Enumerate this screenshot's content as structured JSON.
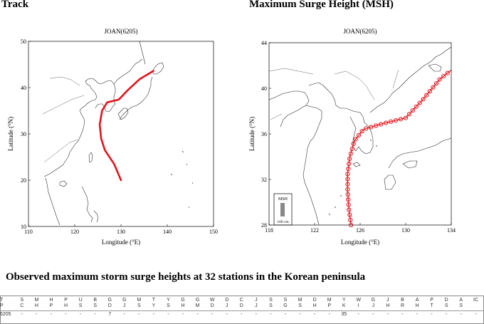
{
  "headings": {
    "track": "Track",
    "msh": "Maximum Surge Height (MSH)",
    "observed": "Observed maximum storm surge heights at 32 stations in the Korean peninsula"
  },
  "left_map": {
    "title": "JOAN(6205)",
    "xlabel": "Longitude (°E)",
    "ylabel": "Latitude (°N)",
    "xlim": [
      110,
      150
    ],
    "ylim": [
      10,
      50
    ],
    "xticks": [
      "110",
      "120",
      "130",
      "140",
      "150"
    ],
    "yticks": [
      "10",
      "20",
      "30",
      "40",
      "50"
    ],
    "track_color": "#e0141b",
    "track": [
      [
        130,
        20
      ],
      [
        128.5,
        23.5
      ],
      [
        126.5,
        26.5
      ],
      [
        125.7,
        29
      ],
      [
        125.4,
        32
      ],
      [
        125.9,
        35
      ],
      [
        127,
        36.8
      ],
      [
        129.5,
        37.4
      ],
      [
        131.5,
        39.5
      ],
      [
        134,
        41.8
      ],
      [
        137,
        43.6
      ]
    ]
  },
  "right_map": {
    "title": "JOAN(6205)",
    "xlabel": "Longitude (°E)",
    "ylabel": "Latitude (°N)",
    "xlim": [
      118,
      134
    ],
    "ylim": [
      28,
      44
    ],
    "xticks": [
      "118",
      "122",
      "126",
      "130",
      "134"
    ],
    "yticks": [
      "28",
      "32",
      "36",
      "40",
      "44"
    ],
    "legend_title": "MSH",
    "legend_scale": "100 cm",
    "track_color": "#e0141b",
    "track": [
      [
        125.2,
        28
      ],
      [
        125,
        29.5
      ],
      [
        124.9,
        31
      ],
      [
        124.9,
        32.5
      ],
      [
        125.1,
        34
      ],
      [
        125.5,
        35.4
      ],
      [
        126.3,
        36.4
      ],
      [
        128,
        36.9
      ],
      [
        130,
        37.4
      ],
      [
        131.5,
        39
      ],
      [
        133,
        40.8
      ],
      [
        134,
        41.6
      ]
    ]
  },
  "table": {
    "columns": [
      {
        "top": "T",
        "bottom": "P"
      },
      {
        "top": "S",
        "bottom": "C"
      },
      {
        "top": "M",
        "bottom": "H"
      },
      {
        "top": "H",
        "bottom": "P"
      },
      {
        "top": "P",
        "bottom": "H"
      },
      {
        "top": "U",
        "bottom": "S"
      },
      {
        "top": "B",
        "bottom": "S"
      },
      {
        "top": "G",
        "bottom": "D"
      },
      {
        "top": "G",
        "bottom": "J"
      },
      {
        "top": "M",
        "bottom": "S"
      },
      {
        "top": "T",
        "bottom": "Y"
      },
      {
        "top": "Y",
        "bottom": "S"
      },
      {
        "top": "G",
        "bottom": "H"
      },
      {
        "top": "G",
        "bottom": "M"
      },
      {
        "top": "W",
        "bottom": "D"
      },
      {
        "top": "D",
        "bottom": "J"
      },
      {
        "top": "C",
        "bottom": "D"
      },
      {
        "top": "J",
        "bottom": "J"
      },
      {
        "top": "S",
        "bottom": "S"
      },
      {
        "top": "S",
        "bottom": "G"
      },
      {
        "top": "M",
        "bottom": "S"
      },
      {
        "top": "D",
        "bottom": "H"
      },
      {
        "top": "M",
        "bottom": "P"
      },
      {
        "top": "Y",
        "bottom": "K"
      },
      {
        "top": "W",
        "bottom": "I"
      },
      {
        "top": "G",
        "bottom": "J"
      },
      {
        "top": "J",
        "bottom": "H"
      },
      {
        "top": "B",
        "bottom": "R"
      },
      {
        "top": "A",
        "bottom": "H"
      },
      {
        "top": "P",
        "bottom": "T"
      },
      {
        "top": "D",
        "bottom": "S"
      },
      {
        "top": "A",
        "bottom": "S"
      },
      {
        "top": "IC",
        "bottom": ""
      }
    ],
    "row_id": "6205",
    "values": [
      "-",
      "-",
      "-",
      "-",
      "-",
      "-",
      "7",
      "-",
      "-",
      "-",
      "-",
      "-",
      "-",
      "-",
      "-",
      "-",
      "-",
      "-",
      "-",
      "-",
      "-",
      "-",
      "35",
      "-",
      "-",
      "-",
      "-",
      "-",
      "-",
      "-",
      "-",
      "-"
    ]
  }
}
